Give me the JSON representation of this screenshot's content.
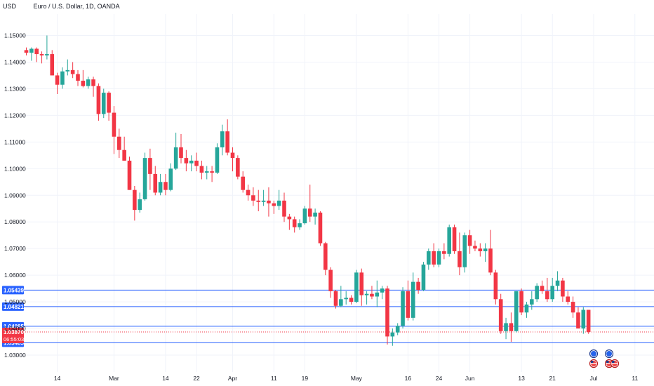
{
  "header": {
    "currency": "USD",
    "symbol": "Euro / U.S. Dollar, 1D, OANDA"
  },
  "colors": {
    "up": "#26a69a",
    "down": "#f23645",
    "level": "#2962ff",
    "grid": "#f0f3fa"
  },
  "chart_data": {
    "type": "candlestick",
    "title": "Euro / U.S. Dollar, 1D, OANDA",
    "ylim": [
      1.026,
      1.156
    ],
    "y_ticks": [
      "1.15000",
      "1.14000",
      "1.13000",
      "1.12000",
      "1.11000",
      "1.10000",
      "1.09000",
      "1.08000",
      "1.07000",
      "1.06000",
      "1.05000",
      "1.04000",
      "1.03000"
    ],
    "x_ticks": [
      {
        "label": "14",
        "i": 6
      },
      {
        "label": "Mar",
        "i": 17
      },
      {
        "label": "14",
        "i": 27
      },
      {
        "label": "22",
        "i": 33
      },
      {
        "label": "Apr",
        "i": 40
      },
      {
        "label": "11",
        "i": 48
      },
      {
        "label": "19",
        "i": 54
      },
      {
        "label": "May",
        "i": 64
      },
      {
        "label": "16",
        "i": 74
      },
      {
        "label": "24",
        "i": 80
      },
      {
        "label": "Jun",
        "i": 86
      },
      {
        "label": "13",
        "i": 96
      },
      {
        "label": "21",
        "i": 102
      },
      {
        "label": "Jul",
        "i": 110
      },
      {
        "label": "11",
        "i": 118
      }
    ],
    "levels": [
      {
        "value": 1.05439,
        "label": "1.05439"
      },
      {
        "value": 1.04821,
        "label": "1.04821"
      },
      {
        "value": 1.04085,
        "label": "1.04085"
      },
      {
        "value": 1.03465,
        "label": "1.03465"
      }
    ],
    "current_price": {
      "label": "1.03870",
      "countdown": "06:55:03"
    },
    "candles": [
      [
        1.1445,
        1.1455,
        1.1425,
        1.1435
      ],
      [
        1.1435,
        1.1455,
        1.1405,
        1.145
      ],
      [
        1.145,
        1.1455,
        1.14,
        1.143
      ],
      [
        1.143,
        1.144,
        1.1395,
        1.1425
      ],
      [
        1.1425,
        1.15,
        1.141,
        1.143
      ],
      [
        1.143,
        1.1445,
        1.135,
        1.135
      ],
      [
        1.135,
        1.136,
        1.128,
        1.1315
      ],
      [
        1.1315,
        1.138,
        1.13,
        1.1365
      ],
      [
        1.1365,
        1.141,
        1.135,
        1.137
      ],
      [
        1.137,
        1.14,
        1.134,
        1.1355
      ],
      [
        1.1355,
        1.137,
        1.131,
        1.133
      ],
      [
        1.133,
        1.137,
        1.1305,
        1.131
      ],
      [
        1.131,
        1.1345,
        1.13,
        1.1335
      ],
      [
        1.1335,
        1.1345,
        1.127,
        1.131
      ],
      [
        1.131,
        1.132,
        1.118,
        1.1205
      ],
      [
        1.1205,
        1.13,
        1.119,
        1.1285
      ],
      [
        1.1285,
        1.129,
        1.118,
        1.121
      ],
      [
        1.121,
        1.1235,
        1.1055,
        1.112
      ],
      [
        1.112,
        1.115,
        1.104,
        1.107
      ],
      [
        1.107,
        1.112,
        1.103,
        1.103
      ],
      [
        1.103,
        1.1045,
        1.092,
        1.092
      ],
      [
        1.092,
        1.0935,
        1.0805,
        1.0845
      ],
      [
        1.0845,
        1.091,
        1.0835,
        1.0885
      ],
      [
        1.0885,
        1.106,
        1.088,
        1.104
      ],
      [
        1.104,
        1.1075,
        1.092,
        1.098
      ],
      [
        1.098,
        1.101,
        1.09,
        1.091
      ],
      [
        1.091,
        1.098,
        1.09,
        1.095
      ],
      [
        1.095,
        1.098,
        1.09,
        1.092
      ],
      [
        1.092,
        1.102,
        1.0915,
        1.1
      ],
      [
        1.1,
        1.1135,
        1.0995,
        1.108
      ],
      [
        1.108,
        1.113,
        1.102,
        1.104
      ],
      [
        1.104,
        1.107,
        1.099,
        1.102
      ],
      [
        1.102,
        1.105,
        1.099,
        1.103
      ],
      [
        1.103,
        1.106,
        1.099,
        1.101
      ],
      [
        1.101,
        1.103,
        1.096,
        1.0985
      ],
      [
        1.0985,
        1.101,
        1.096,
        1.099
      ],
      [
        1.099,
        1.101,
        1.095,
        1.0985
      ],
      [
        1.0985,
        1.1095,
        1.098,
        1.108
      ],
      [
        1.108,
        1.1165,
        1.105,
        1.114
      ],
      [
        1.114,
        1.1185,
        1.105,
        1.106
      ],
      [
        1.106,
        1.108,
        1.099,
        1.104
      ],
      [
        1.104,
        1.105,
        1.096,
        1.097
      ],
      [
        1.097,
        1.099,
        1.091,
        1.092
      ],
      [
        1.092,
        1.094,
        1.088,
        1.09
      ],
      [
        1.09,
        1.093,
        1.086,
        1.088
      ],
      [
        1.088,
        1.092,
        1.084,
        1.0875
      ],
      [
        1.0875,
        1.092,
        1.086,
        1.088
      ],
      [
        1.088,
        1.093,
        1.082,
        1.087
      ],
      [
        1.087,
        1.088,
        1.083,
        1.086
      ],
      [
        1.086,
        1.092,
        1.0845,
        1.088
      ],
      [
        1.088,
        1.091,
        1.08,
        1.082
      ],
      [
        1.082,
        1.083,
        1.077,
        1.081
      ],
      [
        1.081,
        1.082,
        1.076,
        1.078
      ],
      [
        1.078,
        1.081,
        1.077,
        1.0795
      ],
      [
        1.0795,
        1.086,
        1.079,
        1.085
      ],
      [
        1.085,
        1.094,
        1.08,
        1.082
      ],
      [
        1.082,
        1.085,
        1.079,
        1.0835
      ],
      [
        1.0835,
        1.084,
        1.071,
        1.072
      ],
      [
        1.072,
        1.0725,
        1.06,
        1.062
      ],
      [
        1.062,
        1.063,
        1.0515,
        1.054
      ],
      [
        1.054,
        1.0545,
        1.0475,
        1.0485
      ],
      [
        1.0485,
        1.056,
        1.048,
        1.051
      ],
      [
        1.051,
        1.054,
        1.049,
        1.0515
      ],
      [
        1.0515,
        1.0525,
        1.049,
        1.05
      ],
      [
        1.05,
        1.062,
        1.0495,
        1.061
      ],
      [
        1.061,
        1.0625,
        1.0485,
        1.0525
      ],
      [
        1.0525,
        1.054,
        1.049,
        1.053
      ],
      [
        1.053,
        1.056,
        1.051,
        1.052
      ],
      [
        1.052,
        1.058,
        1.048,
        1.0535
      ],
      [
        1.0535,
        1.056,
        1.051,
        1.055
      ],
      [
        1.055,
        1.056,
        1.034,
        1.037
      ],
      [
        1.037,
        1.04,
        1.0335,
        1.0385
      ],
      [
        1.0385,
        1.042,
        1.0375,
        1.041
      ],
      [
        1.041,
        1.0555,
        1.04,
        1.054
      ],
      [
        1.054,
        1.058,
        1.043,
        1.044
      ],
      [
        1.044,
        1.061,
        1.043,
        1.0575
      ],
      [
        1.0575,
        1.059,
        1.053,
        1.0545
      ],
      [
        1.0545,
        1.065,
        1.054,
        1.064
      ],
      [
        1.064,
        1.07,
        1.062,
        1.069
      ],
      [
        1.069,
        1.072,
        1.063,
        1.064
      ],
      [
        1.064,
        1.07,
        1.063,
        1.069
      ],
      [
        1.069,
        1.072,
        1.066,
        1.068
      ],
      [
        1.068,
        1.079,
        1.067,
        1.078
      ],
      [
        1.078,
        1.079,
        1.068,
        1.069
      ],
      [
        1.069,
        1.076,
        1.06,
        1.063
      ],
      [
        1.063,
        1.076,
        1.061,
        1.075
      ],
      [
        1.075,
        1.077,
        1.068,
        1.071
      ],
      [
        1.071,
        1.073,
        1.069,
        1.07
      ],
      [
        1.07,
        1.072,
        1.067,
        1.069
      ],
      [
        1.069,
        1.072,
        1.065,
        1.07
      ],
      [
        1.07,
        1.077,
        1.06,
        1.061
      ],
      [
        1.061,
        1.062,
        1.049,
        1.051
      ],
      [
        1.051,
        1.053,
        1.038,
        1.039
      ],
      [
        1.039,
        1.044,
        1.036,
        1.042
      ],
      [
        1.042,
        1.046,
        1.035,
        1.039
      ],
      [
        1.039,
        1.054,
        1.0385,
        1.054
      ],
      [
        1.054,
        1.055,
        1.045,
        1.046
      ],
      [
        1.046,
        1.05,
        1.044,
        1.049
      ],
      [
        1.049,
        1.054,
        1.047,
        1.051
      ],
      [
        1.051,
        1.057,
        1.05,
        1.056
      ],
      [
        1.056,
        1.058,
        1.053,
        1.054
      ],
      [
        1.054,
        1.059,
        1.05,
        1.051
      ],
      [
        1.051,
        1.059,
        1.05,
        1.056
      ],
      [
        1.056,
        1.0615,
        1.054,
        1.058
      ],
      [
        1.058,
        1.059,
        1.05,
        1.052
      ],
      [
        1.052,
        1.054,
        1.049,
        1.05
      ],
      [
        1.05,
        1.052,
        1.044,
        1.046
      ],
      [
        1.046,
        1.048,
        1.04,
        1.04
      ],
      [
        1.04,
        1.048,
        1.038,
        1.047
      ],
      [
        1.047,
        1.047,
        1.038,
        1.0387
      ]
    ],
    "events": [
      {
        "index": 110,
        "icons": [
          "eu-flag-icon",
          "us-flag-icon"
        ]
      },
      {
        "index": 113,
        "icons": [
          "eu-flag-icon",
          "us-flag-icon",
          "us-flag-icon",
          "us-flag-icon"
        ]
      }
    ]
  }
}
